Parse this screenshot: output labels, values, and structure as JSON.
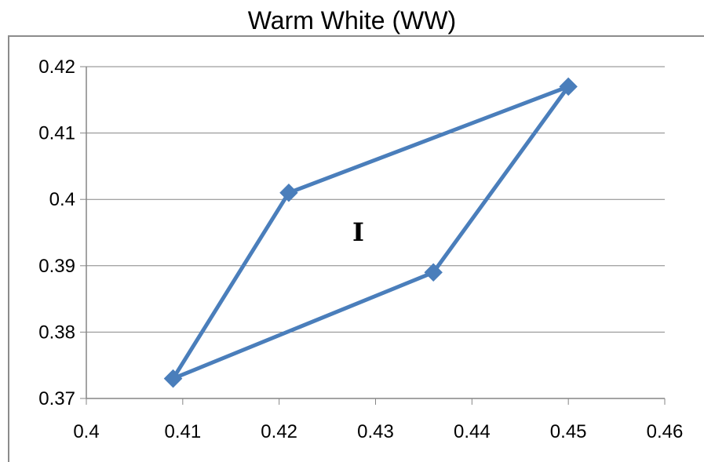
{
  "chart_data": {
    "type": "line",
    "title": "Warm White (WW)",
    "xlabel": "",
    "ylabel": "",
    "xlim": [
      0.4,
      0.46
    ],
    "ylim": [
      0.37,
      0.42
    ],
    "x_ticks": [
      "0.4",
      "0.41",
      "0.42",
      "0.43",
      "0.44",
      "0.45",
      "0.46"
    ],
    "y_ticks": [
      "0.37",
      "0.38",
      "0.39",
      "0.4",
      "0.41",
      "0.42"
    ],
    "grid": true,
    "legend": "none",
    "marker": "diamond",
    "series": [
      {
        "points": [
          {
            "x": 0.409,
            "y": 0.373
          },
          {
            "x": 0.421,
            "y": 0.401
          },
          {
            "x": 0.45,
            "y": 0.417
          },
          {
            "x": 0.436,
            "y": 0.389
          },
          {
            "x": 0.409,
            "y": 0.373
          }
        ],
        "color": "#4a7ebb"
      }
    ],
    "annotations": [
      "I"
    ]
  },
  "colors": {
    "series": "#4a7ebb",
    "grid": "#868686",
    "axis": "#868686",
    "frame": "#8c8c8c"
  }
}
